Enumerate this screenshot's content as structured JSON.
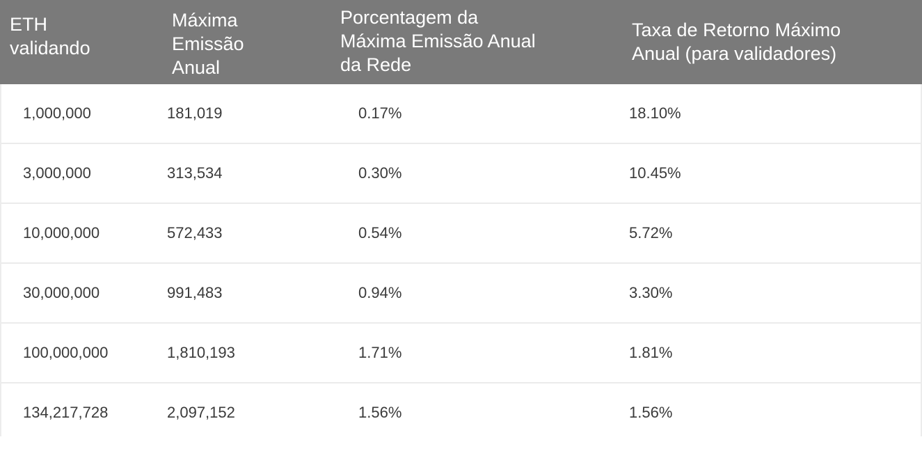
{
  "table": {
    "headers": [
      "ETH\nvalidando",
      "Máxima\nEmissão\nAnual",
      "Porcentagem da\nMáxima Emissão Anual\nda Rede",
      "Taxa de Retorno Máximo\nAnual (para validadores)"
    ],
    "rows": [
      [
        "1,000,000",
        "181,019",
        "0.17%",
        "18.10%"
      ],
      [
        "3,000,000",
        "313,534",
        "0.30%",
        "10.45%"
      ],
      [
        "10,000,000",
        "572,433",
        "0.54%",
        "5.72%"
      ],
      [
        "30,000,000",
        "991,483",
        "0.94%",
        "3.30%"
      ],
      [
        "100,000,000",
        "1,810,193",
        "1.71%",
        "1.81%"
      ],
      [
        "134,217,728",
        "2,097,152",
        "1.56%",
        "1.56%"
      ]
    ]
  },
  "colors": {
    "header_bg": "#7a7a7a",
    "header_text": "#ffffff",
    "cell_text": "#3a3a3a",
    "row_divider": "#ebebeb"
  }
}
